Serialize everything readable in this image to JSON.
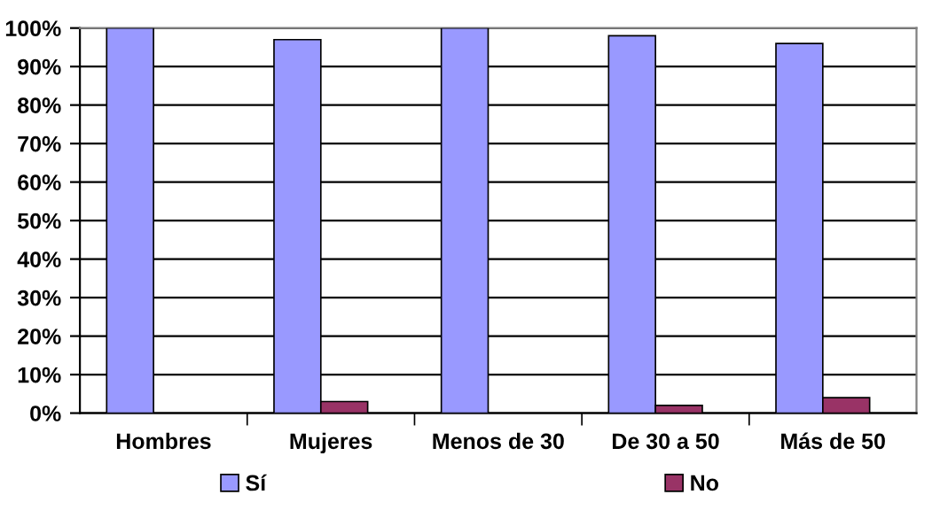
{
  "chart_data": {
    "type": "bar",
    "categories": [
      "Hombres",
      "Mujeres",
      "Menos de 30",
      "De 30 a 50",
      "Más de 50"
    ],
    "series": [
      {
        "name": "Sí",
        "color": "#9999ff",
        "values": [
          100,
          97,
          100,
          98,
          96
        ]
      },
      {
        "name": "No",
        "color": "#993366",
        "values": [
          0,
          3,
          0,
          2,
          4
        ]
      }
    ],
    "ylim": [
      0,
      100
    ],
    "yticks": [
      {
        "value": 0,
        "label": "0%"
      },
      {
        "value": 10,
        "label": "10%"
      },
      {
        "value": 20,
        "label": "20%"
      },
      {
        "value": 30,
        "label": "30%"
      },
      {
        "value": 40,
        "label": "40%"
      },
      {
        "value": 50,
        "label": "50%"
      },
      {
        "value": 60,
        "label": "60%"
      },
      {
        "value": 70,
        "label": "70%"
      },
      {
        "value": 80,
        "label": "80%"
      },
      {
        "value": 90,
        "label": "90%"
      },
      {
        "value": 100,
        "label": "100%"
      }
    ],
    "grid": "y",
    "legend": "bottom"
  }
}
